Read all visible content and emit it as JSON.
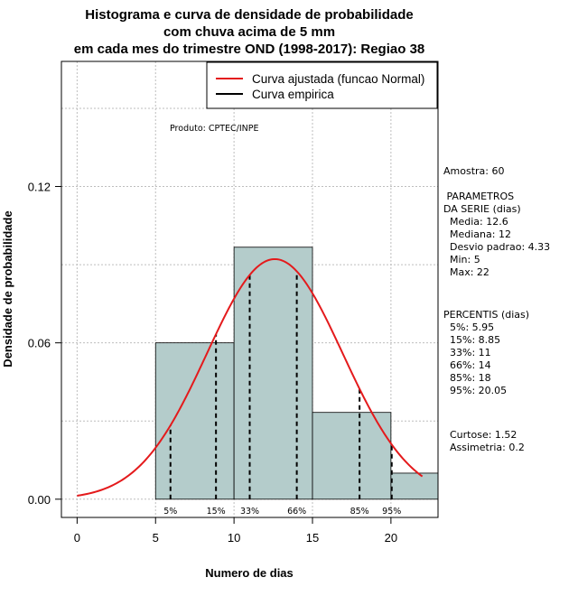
{
  "chart_data": {
    "type": "histogram",
    "title_lines": [
      "Histograma e curva de densidade de probabilidade",
      "com chuva acima de 5 mm",
      "em cada mes do trimestre OND (1998-2017): Regiao 38"
    ],
    "xlabel": "Numero de dias",
    "ylabel": "Densidade de probabilidade",
    "xlim": [
      -1,
      23
    ],
    "ylim": [
      -0.007,
      0.168
    ],
    "x_ticks": [
      0,
      5,
      10,
      15,
      20
    ],
    "y_ticks": [
      0.0,
      0.06,
      0.12
    ],
    "y_tick_labels": [
      "0.00",
      "0.06",
      "0.12"
    ],
    "bins": [
      {
        "from": 5,
        "to": 10,
        "density": 0.06
      },
      {
        "from": 10,
        "to": 15,
        "density": 0.0967
      },
      {
        "from": 15,
        "to": 20,
        "density": 0.0333
      },
      {
        "from": 20,
        "to": 23,
        "density": 0.01
      }
    ],
    "normal_fit": {
      "mean": 12.6,
      "sd": 4.33,
      "x_from": 0,
      "x_to": 22
    },
    "percentiles": [
      {
        "label": "5%",
        "value": 5.95
      },
      {
        "label": "15%",
        "value": 8.85
      },
      {
        "label": "33%",
        "value": 11
      },
      {
        "label": "66%",
        "value": 14
      },
      {
        "label": "85%",
        "value": 18
      },
      {
        "label": "95%",
        "value": 20.05
      }
    ],
    "legend": [
      {
        "label": "Curva ajustada (funcao Normal)",
        "color": "#e41a1c"
      },
      {
        "label": "Curva empirica",
        "color": "#000000"
      }
    ],
    "product_note": "Produto: CPTEC/INPE",
    "colors": {
      "bar_fill": "#b4cccb",
      "curve": "#e41a1c",
      "grid": "#bebebe"
    }
  },
  "stats_panel": {
    "sample": "Amostra: 60",
    "params_header": [
      " PARAMETROS",
      "DA SERIE (dias)"
    ],
    "params": [
      "  Media: 12.6",
      "  Mediana: 12",
      "  Desvio padrao: 4.33",
      "  Min: 5",
      "  Max: 22"
    ],
    "percentis_header": "PERCENTIS (dias)",
    "percentis": [
      "  5%: 5.95",
      "  15%: 8.85",
      "  33%: 11",
      "  66%: 14",
      "  85%: 18",
      "  95%: 20.05"
    ],
    "curtose": "  Curtose: 1.52",
    "assimetria": "  Assimetria: 0.2"
  }
}
